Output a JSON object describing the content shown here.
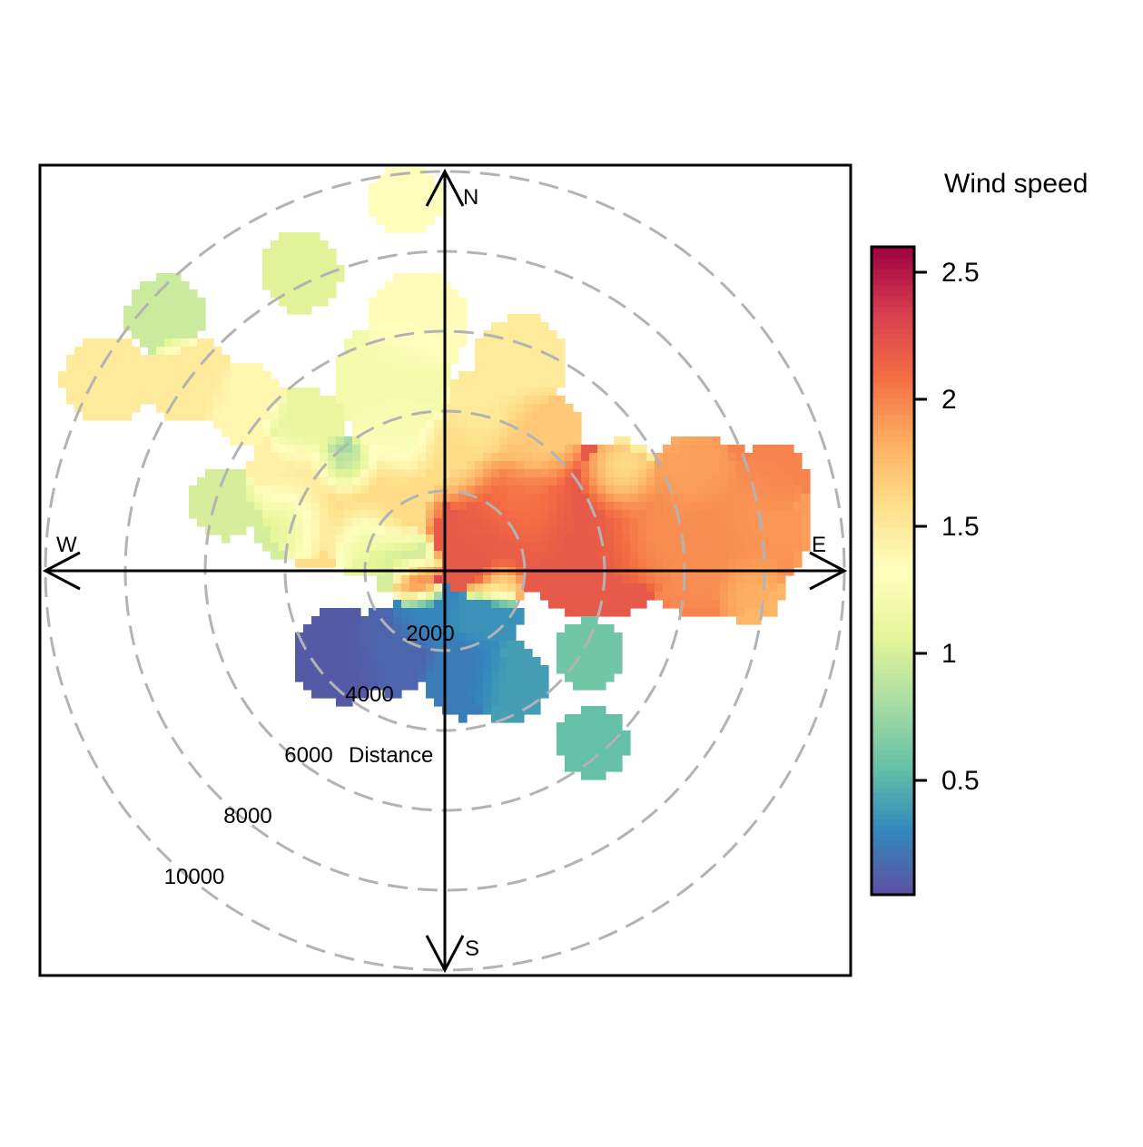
{
  "chart_data": {
    "type": "heatmap",
    "subtype": "polar-plot",
    "directions": {
      "north": "N",
      "south": "S",
      "east": "E",
      "west": "W"
    },
    "radial_ticks": [
      "2000",
      "4000",
      "6000",
      "8000",
      "10000"
    ],
    "radial_values": [
      2000,
      4000,
      6000,
      8000,
      10000
    ],
    "radial_axis_label": "Distance",
    "radial_range": [
      0,
      10000
    ],
    "grid": true,
    "legend": {
      "title": "Wind speed",
      "position": "right",
      "range": [
        0.05,
        2.6
      ],
      "ticks": [
        0.5,
        1,
        1.5,
        2,
        2.5
      ],
      "tick_labels": [
        "0.5",
        "1",
        "1.5",
        "2",
        "2.5"
      ],
      "palette": [
        "#5e4fa2",
        "#3288bd",
        "#66c2a5",
        "#abdda4",
        "#e6f598",
        "#ffffbf",
        "#fee08b",
        "#fdae61",
        "#f46d43",
        "#d53e4f",
        "#9e0142"
      ]
    },
    "blobs": [
      {
        "x": 3800,
        "y": 1000,
        "r": 2200,
        "v": 2.2
      },
      {
        "x": 1300,
        "y": 1000,
        "r": 1800,
        "v": 2.2
      },
      {
        "x": 1800,
        "y": 1600,
        "r": 1500,
        "v": 2.0
      },
      {
        "x": 1000,
        "y": 500,
        "r": 1200,
        "v": 2.2
      },
      {
        "x": 6700,
        "y": 1000,
        "r": 2200,
        "v": 2.0
      },
      {
        "x": 6400,
        "y": 400,
        "r": 1400,
        "v": 1.95
      },
      {
        "x": 5200,
        "y": 1100,
        "r": 1500,
        "v": 1.9
      },
      {
        "x": 7600,
        "y": 1200,
        "r": 1600,
        "v": 1.9
      },
      {
        "x": 8200,
        "y": 2300,
        "r": 900,
        "v": 2.0
      },
      {
        "x": 6200,
        "y": 2300,
        "r": 1100,
        "v": 1.85
      },
      {
        "x": 6400,
        "y": 2500,
        "r": 900,
        "v": 1.9
      },
      {
        "x": 7600,
        "y": -400,
        "r": 900,
        "v": 1.8
      },
      {
        "x": 4400,
        "y": 2300,
        "r": 1000,
        "v": 1.5
      },
      {
        "x": 2200,
        "y": 3300,
        "r": 1300,
        "v": 1.7
      },
      {
        "x": 1900,
        "y": 5200,
        "r": 1200,
        "v": 1.5
      },
      {
        "x": 300,
        "y": 2800,
        "r": 1200,
        "v": 1.6
      },
      {
        "x": -1500,
        "y": 1800,
        "r": 1400,
        "v": 1.6
      },
      {
        "x": -3000,
        "y": 1500,
        "r": 1500,
        "v": 1.6
      },
      {
        "x": -3800,
        "y": 2300,
        "r": 1200,
        "v": 1.45
      },
      {
        "x": -1200,
        "y": 3400,
        "r": 1200,
        "v": 1.25
      },
      {
        "x": -1300,
        "y": 4800,
        "r": 1500,
        "v": 1.2
      },
      {
        "x": -6400,
        "y": 4800,
        "r": 1100,
        "v": 1.5
      },
      {
        "x": -8500,
        "y": 4800,
        "r": 1100,
        "v": 1.5
      },
      {
        "x": -5000,
        "y": 4200,
        "r": 1000,
        "v": 1.4
      },
      {
        "x": -3800,
        "y": 1300,
        "r": 1100,
        "v": 1.0
      },
      {
        "x": -2000,
        "y": 800,
        "r": 1000,
        "v": 1.1
      },
      {
        "x": -1000,
        "y": 200,
        "r": 900,
        "v": 1.0
      },
      {
        "x": -3500,
        "y": 3600,
        "r": 1000,
        "v": 1.1
      },
      {
        "x": -2500,
        "y": 2600,
        "r": 800,
        "v": 0.8
      },
      {
        "x": -5500,
        "y": 1700,
        "r": 900,
        "v": 1.0
      },
      {
        "x": -3600,
        "y": 7500,
        "r": 1000,
        "v": 1.05
      },
      {
        "x": -7000,
        "y": 6400,
        "r": 1000,
        "v": 0.95
      },
      {
        "x": -1000,
        "y": 9300,
        "r": 900,
        "v": 1.3
      },
      {
        "x": -700,
        "y": 6200,
        "r": 1300,
        "v": 1.35
      },
      {
        "x": 1000,
        "y": 4000,
        "r": 1100,
        "v": 1.5
      },
      {
        "x": -700,
        "y": -300,
        "r": 700,
        "v": 2.3
      },
      {
        "x": 1400,
        "y": -300,
        "r": 600,
        "v": 1.4
      },
      {
        "x": -500,
        "y": -1100,
        "r": 900,
        "v": 0.3
      },
      {
        "x": -2600,
        "y": -2100,
        "r": 1200,
        "v": 0.1
      },
      {
        "x": -1300,
        "y": -2000,
        "r": 1100,
        "v": 0.15
      },
      {
        "x": 500,
        "y": -2600,
        "r": 1100,
        "v": 0.25
      },
      {
        "x": 1600,
        "y": -2800,
        "r": 1000,
        "v": 0.4
      },
      {
        "x": 1000,
        "y": -1200,
        "r": 900,
        "v": 0.35
      },
      {
        "x": 3600,
        "y": -2100,
        "r": 900,
        "v": 0.6
      },
      {
        "x": 3700,
        "y": -4300,
        "r": 900,
        "v": 0.55
      }
    ]
  }
}
